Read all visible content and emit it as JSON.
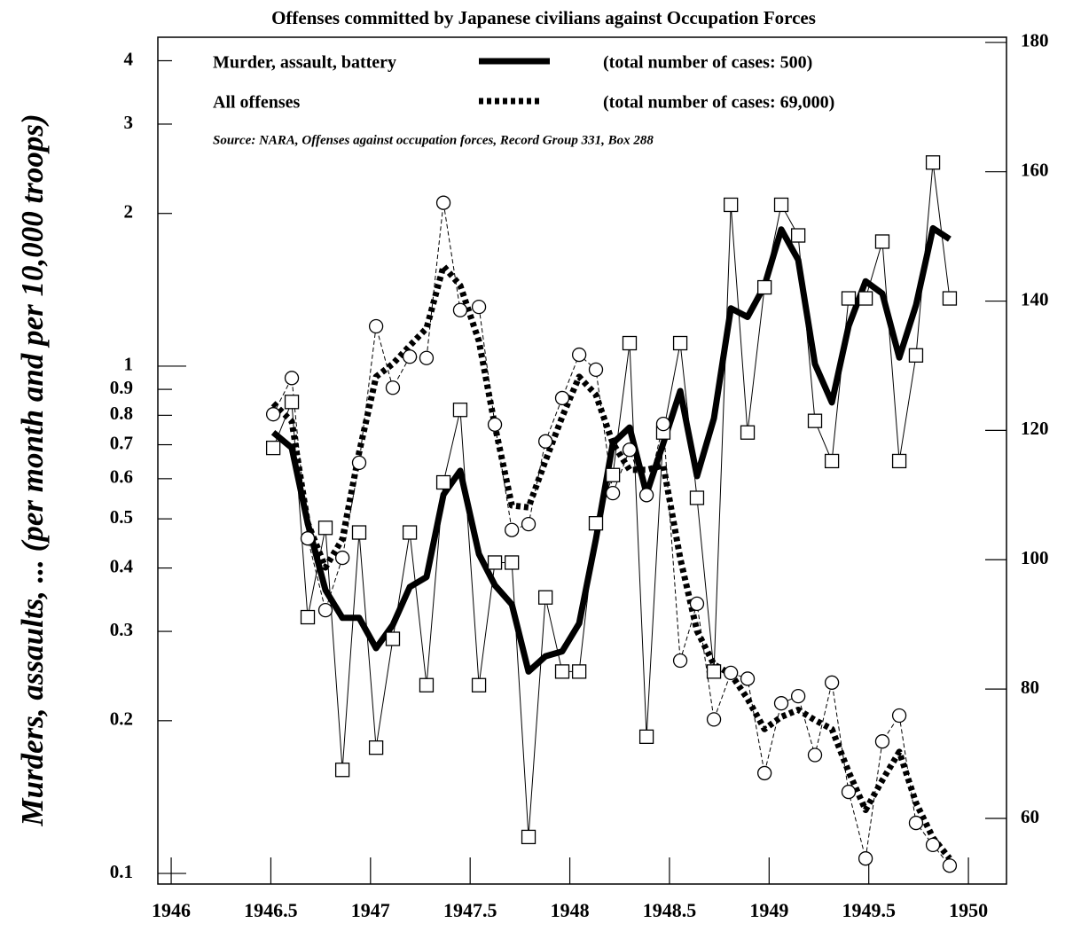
{
  "chart_data": {
    "type": "line",
    "title": "Offenses committed by Japanese civilians against Occupation Forces",
    "source": "Source: NARA, Offenses against occupation forces, Record Group 331, Box 288",
    "y_label": "Murders, assaults, ... (per month and per 10,000 troops)",
    "x": [
      1946.512,
      1946.605,
      1946.685,
      1946.774,
      1946.859,
      1946.943,
      1947.028,
      1947.112,
      1947.197,
      1947.281,
      1947.366,
      1947.45,
      1947.544,
      1947.624,
      1947.709,
      1947.793,
      1947.878,
      1947.962,
      1948.047,
      1948.131,
      1948.216,
      1948.3,
      1948.385,
      1948.469,
      1948.554,
      1948.638,
      1948.723,
      1948.808,
      1948.892,
      1948.977,
      1949.061,
      1949.146,
      1949.23,
      1949.315,
      1949.399,
      1949.484,
      1949.568,
      1949.653,
      1949.737,
      1949.822,
      1949.906
    ],
    "xlim": [
      1945.933,
      1950.191
    ],
    "xticks": [
      1946,
      1946.5,
      1947,
      1947.5,
      1948,
      1948.5,
      1949,
      1949.5,
      1950
    ],
    "ylim": [
      0.0953,
      4.45
    ],
    "ylog": true,
    "yticks": [
      0.1,
      0.2,
      0.3,
      0.4,
      0.5,
      0.6,
      0.7,
      0.8,
      0.9,
      1,
      2,
      3,
      4
    ],
    "y2lim": [
      49.85,
      180.8
    ],
    "y2ticks": [
      60,
      80,
      100,
      120,
      140,
      160,
      180
    ],
    "series": [
      {
        "name": "Murder, assault, battery",
        "cases_label": "(total number of cases: 500)",
        "color": "#000000",
        "axis": "y",
        "style": "solid",
        "values": [
          0.74,
          0.69,
          0.49,
          0.362,
          0.319,
          0.319,
          0.278,
          0.309,
          0.367,
          0.384,
          0.558,
          0.622,
          0.426,
          0.37,
          0.339,
          0.25,
          0.268,
          0.274,
          0.311,
          0.456,
          0.705,
          0.757,
          0.56,
          0.705,
          0.893,
          0.607,
          0.789,
          1.3,
          1.25,
          1.44,
          1.86,
          1.62,
          1.01,
          0.848,
          1.2,
          1.47,
          1.39,
          1.04,
          1.32,
          1.87,
          1.78
        ]
      },
      {
        "name": "All offenses",
        "cases_label": "(total number of cases: 69,000)",
        "color": "#000000",
        "axis": "y2",
        "style": "dotted",
        "values": [
          124.2,
          121.4,
          105.7,
          98.8,
          103.2,
          116.6,
          128.3,
          130.3,
          133.1,
          135.8,
          145.4,
          142.4,
          133.8,
          120.7,
          108.4,
          108.1,
          115.3,
          122.1,
          128.3,
          125.5,
          118.0,
          113.9,
          113.9,
          114.6,
          100.2,
          89.0,
          83.8,
          82.3,
          78.5,
          73.8,
          75.7,
          76.8,
          75.2,
          73.8,
          67.2,
          61.3,
          65.9,
          70.3,
          62.4,
          57.0,
          53.8
        ]
      },
      {
        "color": "#000000",
        "axis": "y",
        "style": "thin",
        "marker": "square",
        "values": [
          0.69,
          0.85,
          0.32,
          0.48,
          0.16,
          0.47,
          0.177,
          0.29,
          0.47,
          0.235,
          0.59,
          0.82,
          0.235,
          0.41,
          0.41,
          0.118,
          0.35,
          0.25,
          0.25,
          0.49,
          0.61,
          1.11,
          0.186,
          0.74,
          1.11,
          0.55,
          0.25,
          2.08,
          0.74,
          1.43,
          2.08,
          1.81,
          0.78,
          0.65,
          1.36,
          1.36,
          1.76,
          0.65,
          1.05,
          2.52,
          1.36
        ]
      },
      {
        "color": "#000000",
        "axis": "y2",
        "style": "thin-dashed",
        "marker": "circle",
        "values": [
          122.5,
          128.1,
          103.3,
          92.2,
          100.3,
          115.0,
          136.1,
          126.6,
          131.4,
          131.2,
          155.2,
          138.6,
          139.1,
          120.9,
          104.6,
          105.5,
          118.3,
          125.0,
          131.7,
          129.4,
          110.3,
          117.0,
          110.0,
          121.0,
          84.4,
          93.2,
          75.3,
          82.5,
          81.6,
          67.0,
          77.8,
          78.9,
          69.8,
          81.0,
          64.1,
          53.8,
          71.9,
          75.9,
          59.3,
          55.9,
          52.7
        ]
      }
    ]
  }
}
